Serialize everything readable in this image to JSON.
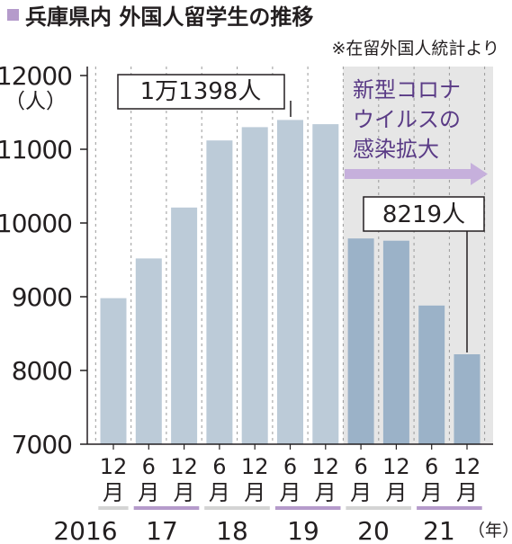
{
  "title": "兵庫県内 外国人留学生の推移",
  "source": "※在留外国人統計より",
  "y_unit": "（人）",
  "year_unit": "（年）",
  "annotations": {
    "peak": "1万1398人",
    "latest": "8219人",
    "covid_line1": "新型コロナ",
    "covid_line2": "ウイルスの",
    "covid_line3": "感染拡大"
  },
  "colors": {
    "bar_pre": "#bccbd8",
    "bar_post": "#9bb2c8",
    "covid_bg": "#e6e6e6",
    "accent_purple": "#b59bcb",
    "arrow": "#c6b0dc",
    "covid_text": "#5a3b86",
    "text": "#231f20"
  },
  "chart_data": {
    "type": "bar",
    "title": "兵庫県内 外国人留学生の推移",
    "ylabel": "（人）",
    "xlabel": "（年）",
    "ylim": [
      7000,
      12000
    ],
    "yticks": [
      7000,
      8000,
      9000,
      10000,
      11000,
      12000
    ],
    "yticks_labels": [
      "7000",
      "8000",
      "9000",
      "10000",
      "11000",
      "12000"
    ],
    "grid": "vertical dashed",
    "categories": [
      "2016-12",
      "2017-06",
      "2017-12",
      "2018-06",
      "2018-12",
      "2019-06",
      "2019-12",
      "2020-06",
      "2020-12",
      "2021-06",
      "2021-12"
    ],
    "month_labels": [
      "12",
      "6",
      "12",
      "6",
      "12",
      "6",
      "12",
      "6",
      "12",
      "6",
      "12"
    ],
    "month_suffix": "月",
    "year_labels": [
      "2016",
      "17",
      "18",
      "19",
      "20",
      "21"
    ],
    "values": [
      8980,
      9520,
      10210,
      11120,
      11300,
      11398,
      11340,
      9790,
      9760,
      8880,
      8219
    ],
    "covid_start_index": 7
  }
}
